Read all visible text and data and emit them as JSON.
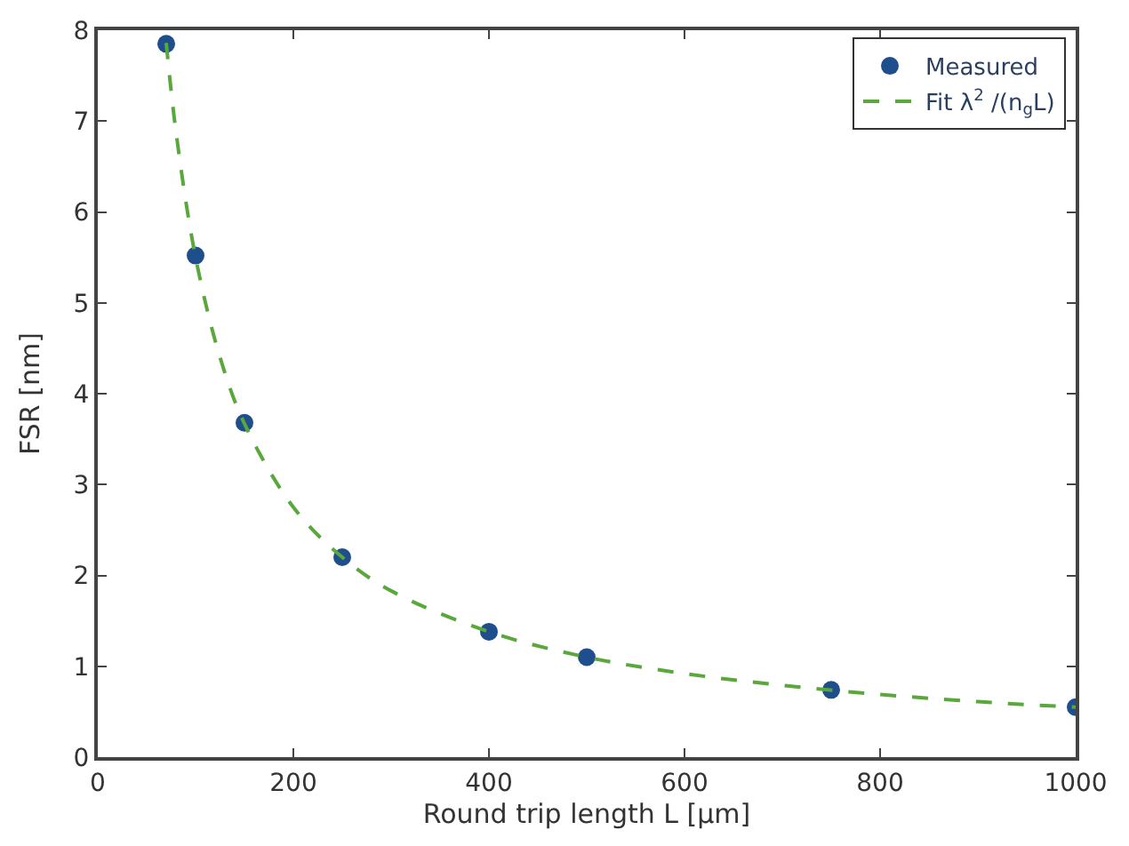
{
  "chart_data": {
    "type": "scatter",
    "xlabel": "Round trip length L [μm]",
    "ylabel": "FSR [nm]",
    "xlim": [
      0,
      1000
    ],
    "xticks": [
      0,
      200,
      400,
      600,
      800,
      1000
    ],
    "ylim": [
      0,
      8
    ],
    "yticks": [
      0,
      1,
      2,
      3,
      4,
      5,
      6,
      7,
      8
    ],
    "legend": "top right",
    "series": [
      {
        "name": "Measured",
        "marker": "circle",
        "color": "#1f4e8c",
        "x": [
          70,
          100,
          150,
          250,
          400,
          500,
          750,
          1000
        ],
        "values": [
          7.85,
          5.52,
          3.68,
          2.2,
          1.38,
          1.1,
          0.74,
          0.55
        ]
      },
      {
        "name": "Fit λ$^{2}$ /(n$_{g}$L)",
        "type": "line",
        "line_style": "dashed",
        "color": "#5aa83c",
        "x": [
          70,
          80,
          100,
          125,
          150,
          200,
          250,
          300,
          400,
          500,
          600,
          700,
          800,
          900,
          1000
        ],
        "values": [
          7.86,
          6.88,
          5.5,
          4.4,
          3.67,
          2.75,
          2.2,
          1.83,
          1.38,
          1.1,
          0.92,
          0.79,
          0.69,
          0.61,
          0.55
        ]
      }
    ]
  }
}
